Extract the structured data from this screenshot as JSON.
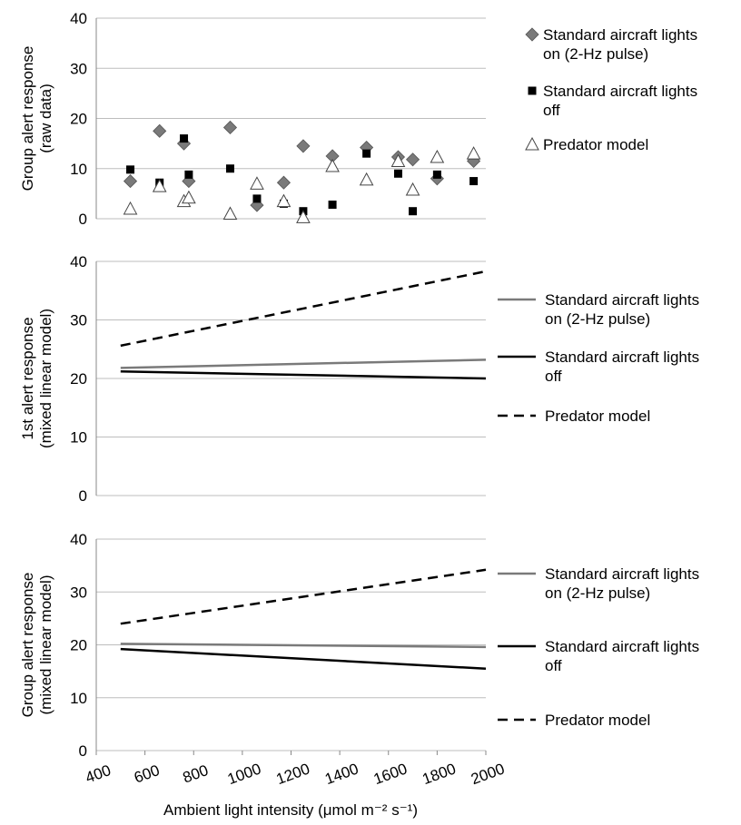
{
  "colors": {
    "lights_on": "#7a7a7a",
    "lights_off": "#000000",
    "predator": "#000000",
    "grid": "#bdbdbd"
  },
  "x_axis": {
    "label": "Ambient light intensity (μmol m⁻² s⁻¹)",
    "ticks": [
      400,
      600,
      800,
      1000,
      1200,
      1400,
      1600,
      1800,
      2000
    ],
    "tick_labels": [
      "400",
      "600",
      "800",
      "1000",
      "1200",
      "1400",
      "1600",
      "1800",
      "2000"
    ],
    "range": [
      400,
      2000
    ]
  },
  "chart_data": [
    {
      "type": "scatter",
      "ylabel_line1": "Group alert response",
      "ylabel_line2": "(raw data)",
      "ylim": [
        0,
        40
      ],
      "yticks": [
        0,
        10,
        20,
        30,
        40
      ],
      "grid": "horizontal",
      "legend_placement": "right",
      "series": [
        {
          "name_line1": "Standard aircraft lights",
          "name_line2": "on (2-Hz pulse)",
          "marker": "diamond",
          "points": [
            [
              540,
              7.5
            ],
            [
              660,
              17.5
            ],
            [
              760,
              15
            ],
            [
              780,
              7.5
            ],
            [
              950,
              18.2
            ],
            [
              1060,
              2.7
            ],
            [
              1170,
              7.2
            ],
            [
              1250,
              14.5
            ],
            [
              1370,
              12.5
            ],
            [
              1510,
              14.2
            ],
            [
              1640,
              12.3
            ],
            [
              1700,
              11.8
            ],
            [
              1800,
              8
            ],
            [
              1950,
              11.5
            ]
          ]
        },
        {
          "name_line1": "Standard aircraft lights",
          "name_line2": "off",
          "marker": "square",
          "points": [
            [
              540,
              9.8
            ],
            [
              660,
              7.2
            ],
            [
              760,
              16
            ],
            [
              780,
              8.8
            ],
            [
              950,
              10
            ],
            [
              1060,
              4
            ],
            [
              1170,
              3
            ],
            [
              1250,
              1.5
            ],
            [
              1370,
              2.8
            ],
            [
              1510,
              13
            ],
            [
              1640,
              9
            ],
            [
              1700,
              1.5
            ],
            [
              1800,
              8.8
            ],
            [
              1950,
              7.5
            ]
          ]
        },
        {
          "name_line1": "Predator model",
          "name_line2": "",
          "marker": "triangle",
          "points": [
            [
              540,
              2
            ],
            [
              660,
              6.5
            ],
            [
              760,
              3.5
            ],
            [
              780,
              4.2
            ],
            [
              950,
              1
            ],
            [
              1060,
              7
            ],
            [
              1170,
              3.5
            ],
            [
              1250,
              0.3
            ],
            [
              1370,
              10.5
            ],
            [
              1510,
              7.8
            ],
            [
              1640,
              11.5
            ],
            [
              1700,
              5.8
            ],
            [
              1800,
              12.3
            ],
            [
              1950,
              13
            ]
          ]
        }
      ]
    },
    {
      "type": "line",
      "ylabel_line1": "1st alert response",
      "ylabel_line2": "(mixed linear model)",
      "ylim": [
        0,
        40
      ],
      "yticks": [
        0,
        10,
        20,
        30,
        40
      ],
      "grid": "horizontal",
      "legend_placement": "right",
      "series": [
        {
          "name_line1": "Standard aircraft lights",
          "name_line2": "on (2-Hz pulse)",
          "style": "solid-gray",
          "x": [
            500,
            2000
          ],
          "y": [
            21.8,
            23.2
          ]
        },
        {
          "name_line1": "Standard aircraft lights",
          "name_line2": "off",
          "style": "solid-black",
          "x": [
            500,
            2000
          ],
          "y": [
            21.2,
            20
          ]
        },
        {
          "name_line1": "Predator model",
          "name_line2": "",
          "style": "dashed-black",
          "x": [
            500,
            2000
          ],
          "y": [
            25.6,
            38.3
          ]
        }
      ]
    },
    {
      "type": "line",
      "ylabel_line1": "Group alert response",
      "ylabel_line2": "(mixed linear model)",
      "ylim": [
        0,
        40
      ],
      "yticks": [
        0,
        10,
        20,
        30,
        40
      ],
      "grid": "horizontal",
      "legend_placement": "right",
      "series": [
        {
          "name_line1": "Standard aircraft lights",
          "name_line2": "on (2-Hz pulse)",
          "style": "solid-gray",
          "x": [
            500,
            2000
          ],
          "y": [
            20.2,
            19.6
          ]
        },
        {
          "name_line1": "Standard aircraft lights",
          "name_line2": "off",
          "style": "solid-black",
          "x": [
            500,
            2000
          ],
          "y": [
            19.2,
            15.5
          ]
        },
        {
          "name_line1": "Predator model",
          "name_line2": "",
          "style": "dashed-black",
          "x": [
            500,
            2000
          ],
          "y": [
            24,
            34.2
          ]
        }
      ]
    }
  ]
}
